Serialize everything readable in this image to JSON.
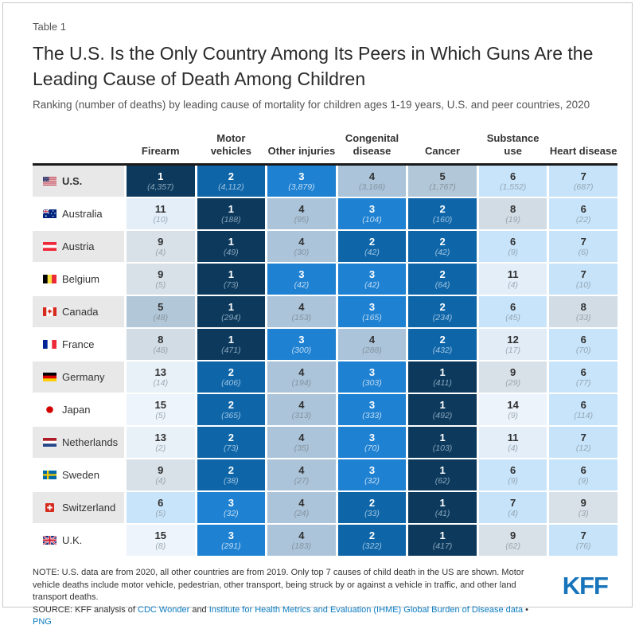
{
  "header": {
    "table_label": "Table 1"
  },
  "chart_data": {
    "type": "table",
    "title": "The U.S. Is the Only Country Among Its Peers in Which Guns Are the Leading Cause of Death Among Children",
    "subtitle": "Ranking (number of deaths) by leading cause of mortality for children ages 1-19 years, U.S. and peer countries, 2020",
    "columns": [
      "Firearm",
      "Motor vehicles",
      "Other injuries",
      "Congenital disease",
      "Cancer",
      "Substance use",
      "Heart disease"
    ],
    "rows": [
      {
        "country": "U.S.",
        "flag": "us",
        "bold": true,
        "cells": [
          {
            "rank": 1,
            "deaths": "4,357"
          },
          {
            "rank": 2,
            "deaths": "4,112"
          },
          {
            "rank": 3,
            "deaths": "3,879"
          },
          {
            "rank": 4,
            "deaths": "3,166"
          },
          {
            "rank": 5,
            "deaths": "1,767"
          },
          {
            "rank": 6,
            "deaths": "1,552"
          },
          {
            "rank": 7,
            "deaths": "687"
          }
        ]
      },
      {
        "country": "Australia",
        "flag": "au",
        "bold": false,
        "cells": [
          {
            "rank": 11,
            "deaths": "10"
          },
          {
            "rank": 1,
            "deaths": "188"
          },
          {
            "rank": 4,
            "deaths": "95"
          },
          {
            "rank": 3,
            "deaths": "104"
          },
          {
            "rank": 2,
            "deaths": "160"
          },
          {
            "rank": 8,
            "deaths": "19"
          },
          {
            "rank": 6,
            "deaths": "22"
          }
        ]
      },
      {
        "country": "Austria",
        "flag": "at",
        "bold": false,
        "cells": [
          {
            "rank": 9,
            "deaths": "4"
          },
          {
            "rank": 1,
            "deaths": "49"
          },
          {
            "rank": 4,
            "deaths": "30"
          },
          {
            "rank": 2,
            "deaths": "42"
          },
          {
            "rank": 2,
            "deaths": "42"
          },
          {
            "rank": 6,
            "deaths": "9"
          },
          {
            "rank": 7,
            "deaths": "6"
          }
        ]
      },
      {
        "country": "Belgium",
        "flag": "be",
        "bold": false,
        "cells": [
          {
            "rank": 9,
            "deaths": "5"
          },
          {
            "rank": 1,
            "deaths": "73"
          },
          {
            "rank": 3,
            "deaths": "42"
          },
          {
            "rank": 3,
            "deaths": "42"
          },
          {
            "rank": 2,
            "deaths": "64"
          },
          {
            "rank": 11,
            "deaths": "4"
          },
          {
            "rank": 7,
            "deaths": "10"
          }
        ]
      },
      {
        "country": "Canada",
        "flag": "ca",
        "bold": false,
        "cells": [
          {
            "rank": 5,
            "deaths": "48"
          },
          {
            "rank": 1,
            "deaths": "294"
          },
          {
            "rank": 4,
            "deaths": "153"
          },
          {
            "rank": 3,
            "deaths": "165"
          },
          {
            "rank": 2,
            "deaths": "234"
          },
          {
            "rank": 6,
            "deaths": "45"
          },
          {
            "rank": 8,
            "deaths": "33"
          }
        ]
      },
      {
        "country": "France",
        "flag": "fr",
        "bold": false,
        "cells": [
          {
            "rank": 8,
            "deaths": "48"
          },
          {
            "rank": 1,
            "deaths": "471"
          },
          {
            "rank": 3,
            "deaths": "300"
          },
          {
            "rank": 4,
            "deaths": "288"
          },
          {
            "rank": 2,
            "deaths": "432"
          },
          {
            "rank": 12,
            "deaths": "17"
          },
          {
            "rank": 6,
            "deaths": "70"
          }
        ]
      },
      {
        "country": "Germany",
        "flag": "de",
        "bold": false,
        "cells": [
          {
            "rank": 13,
            "deaths": "14"
          },
          {
            "rank": 2,
            "deaths": "406"
          },
          {
            "rank": 4,
            "deaths": "194"
          },
          {
            "rank": 3,
            "deaths": "303"
          },
          {
            "rank": 1,
            "deaths": "411"
          },
          {
            "rank": 9,
            "deaths": "29"
          },
          {
            "rank": 6,
            "deaths": "77"
          }
        ]
      },
      {
        "country": "Japan",
        "flag": "jp",
        "bold": false,
        "cells": [
          {
            "rank": 15,
            "deaths": "5"
          },
          {
            "rank": 2,
            "deaths": "365"
          },
          {
            "rank": 4,
            "deaths": "313"
          },
          {
            "rank": 3,
            "deaths": "333"
          },
          {
            "rank": 1,
            "deaths": "492"
          },
          {
            "rank": 14,
            "deaths": "9"
          },
          {
            "rank": 6,
            "deaths": "114"
          }
        ]
      },
      {
        "country": "Netherlands",
        "flag": "nl",
        "bold": false,
        "cells": [
          {
            "rank": 13,
            "deaths": "2"
          },
          {
            "rank": 2,
            "deaths": "73"
          },
          {
            "rank": 4,
            "deaths": "35"
          },
          {
            "rank": 3,
            "deaths": "70"
          },
          {
            "rank": 1,
            "deaths": "103"
          },
          {
            "rank": 11,
            "deaths": "4"
          },
          {
            "rank": 7,
            "deaths": "12"
          }
        ]
      },
      {
        "country": "Sweden",
        "flag": "se",
        "bold": false,
        "cells": [
          {
            "rank": 9,
            "deaths": "4"
          },
          {
            "rank": 2,
            "deaths": "38"
          },
          {
            "rank": 4,
            "deaths": "27"
          },
          {
            "rank": 3,
            "deaths": "32"
          },
          {
            "rank": 1,
            "deaths": "62"
          },
          {
            "rank": 6,
            "deaths": "9"
          },
          {
            "rank": 6,
            "deaths": "9"
          }
        ]
      },
      {
        "country": "Switzerland",
        "flag": "ch",
        "bold": false,
        "cells": [
          {
            "rank": 6,
            "deaths": "5"
          },
          {
            "rank": 3,
            "deaths": "32"
          },
          {
            "rank": 4,
            "deaths": "24"
          },
          {
            "rank": 2,
            "deaths": "33"
          },
          {
            "rank": 1,
            "deaths": "41"
          },
          {
            "rank": 7,
            "deaths": "4"
          },
          {
            "rank": 9,
            "deaths": "3"
          }
        ]
      },
      {
        "country": "U.K.",
        "flag": "gb",
        "bold": false,
        "cells": [
          {
            "rank": 15,
            "deaths": "8"
          },
          {
            "rank": 3,
            "deaths": "291"
          },
          {
            "rank": 4,
            "deaths": "183"
          },
          {
            "rank": 2,
            "deaths": "322"
          },
          {
            "rank": 1,
            "deaths": "417"
          },
          {
            "rank": 9,
            "deaths": "62"
          },
          {
            "rank": 7,
            "deaths": "76"
          }
        ]
      }
    ]
  },
  "rank_colors": {
    "1": {
      "bg": "#0d3a5c",
      "num": "#ffffff",
      "count": "#87a4bc"
    },
    "2": {
      "bg": "#0e66a9",
      "num": "#ffffff",
      "count": "#9fc3e0"
    },
    "3": {
      "bg": "#1e81d2",
      "num": "#ffffff",
      "count": "#c3ddf3"
    },
    "4": {
      "bg": "#abc4da",
      "num": "#303030",
      "count": "#84939f"
    },
    "5": {
      "bg": "#b2c7d8",
      "num": "#303030",
      "count": "#86949f"
    },
    "6": {
      "bg": "#c8e4fa",
      "num": "#303030",
      "count": "#94a6b4"
    },
    "7": {
      "bg": "#c6e3f9",
      "num": "#303030",
      "count": "#94a6b4"
    },
    "8": {
      "bg": "#d1dce5",
      "num": "#303030",
      "count": "#97a2ac"
    },
    "9": {
      "bg": "#d8e1e8",
      "num": "#303030",
      "count": "#99a4ad"
    },
    "11": {
      "bg": "#e3eef9",
      "num": "#303030",
      "count": "#9ba8b3"
    },
    "12": {
      "bg": "#e1ecf7",
      "num": "#303030",
      "count": "#9ba8b3"
    },
    "13": {
      "bg": "#e9f1f8",
      "num": "#303030",
      "count": "#9ca9b4"
    },
    "14": {
      "bg": "#ecf3fa",
      "num": "#303030",
      "count": "#9ca9b4"
    },
    "15": {
      "bg": "#edf4fb",
      "num": "#303030",
      "count": "#9ca9b4"
    }
  },
  "footer": {
    "note": "NOTE: U.S. data are from 2020, all other countries are from 2019. Only top 7 causes of child death in the US are shown. Motor vehicle deaths include motor vehicle, pedestrian, other transport, being struck by or against a vehicle in traffic, and other land transport deaths.",
    "source_prefix": "SOURCE: KFF analysis of ",
    "source_link1": "CDC Wonder",
    "source_mid": " and ",
    "source_link2": "Institute for Health Metrics and Evaluation (IHME) Global Burden of Disease data",
    "source_sep": " • ",
    "source_link3": "PNG",
    "kff_logo": "KFF"
  },
  "colors": {
    "link": "#0d7dc1",
    "logo": "#1774bb",
    "header_rule": "#1a1a1a",
    "row_label_alt_bg": "#e8e8e8"
  }
}
